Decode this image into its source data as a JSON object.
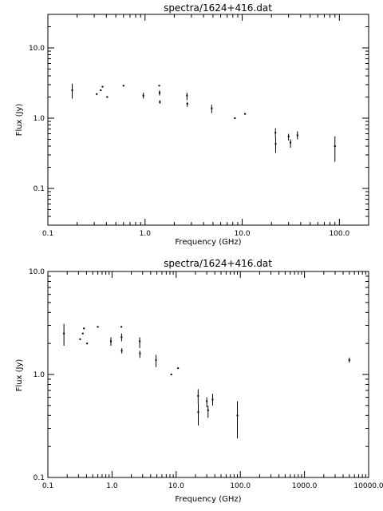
{
  "chart_data": [
    {
      "type": "scatter",
      "title": "spectra/1624+416.dat",
      "xlabel": "Frequency (GHz)",
      "ylabel": "Flux (Jy)",
      "xscale": "log",
      "yscale": "log",
      "xlim": [
        0.1,
        200.0
      ],
      "ylim": [
        0.03,
        30.0
      ],
      "x_ticks": [
        "0.1",
        "1.0",
        "10.0",
        "100.0"
      ],
      "y_ticks": [
        "0.1",
        "1.0",
        "10.0"
      ],
      "grid": false,
      "points": [
        {
          "x": 0.178,
          "y": 2.5,
          "ylo": 1.9,
          "yhi": 3.1
        },
        {
          "x": 0.318,
          "y": 2.2
        },
        {
          "x": 0.35,
          "y": 2.5
        },
        {
          "x": 0.365,
          "y": 2.8
        },
        {
          "x": 0.408,
          "y": 2.0
        },
        {
          "x": 0.6,
          "y": 2.9
        },
        {
          "x": 0.96,
          "y": 2.1,
          "ylo": 1.9,
          "yhi": 2.3
        },
        {
          "x": 1.4,
          "y": 2.9
        },
        {
          "x": 1.41,
          "y": 2.3,
          "ylo": 2.1,
          "yhi": 2.5
        },
        {
          "x": 1.42,
          "y": 1.7,
          "ylo": 1.6,
          "yhi": 1.8
        },
        {
          "x": 2.7,
          "y": 2.1,
          "ylo": 1.8,
          "yhi": 2.3
        },
        {
          "x": 2.72,
          "y": 1.6,
          "ylo": 1.45,
          "yhi": 1.7
        },
        {
          "x": 4.85,
          "y": 1.38,
          "ylo": 1.18,
          "yhi": 1.55
        },
        {
          "x": 8.4,
          "y": 1.0
        },
        {
          "x": 10.7,
          "y": 1.15
        },
        {
          "x": 22.0,
          "y": 0.62,
          "ylo": 0.52,
          "yhi": 0.72
        },
        {
          "x": 22.1,
          "y": 0.43,
          "ylo": 0.32,
          "yhi": 0.52
        },
        {
          "x": 30.0,
          "y": 0.55,
          "ylo": 0.48,
          "yhi": 0.6
        },
        {
          "x": 31.4,
          "y": 0.45,
          "ylo": 0.38,
          "yhi": 0.5
        },
        {
          "x": 37.0,
          "y": 0.57,
          "ylo": 0.5,
          "yhi": 0.65
        },
        {
          "x": 90.0,
          "y": 0.4,
          "ylo": 0.24,
          "yhi": 0.55
        }
      ]
    },
    {
      "type": "scatter",
      "title": "spectra/1624+416.dat",
      "xlabel": "Frequency (GHz)",
      "ylabel": "Flux (Jy)",
      "xscale": "log",
      "yscale": "log",
      "xlim": [
        0.1,
        10000.0
      ],
      "ylim": [
        0.1,
        10.0
      ],
      "x_ticks": [
        "0.1",
        "1.0",
        "10.0",
        "100.0",
        "1000.0",
        "10000.0"
      ],
      "y_ticks": [
        "0.1",
        "1.0",
        "10.0"
      ],
      "grid": false,
      "points": [
        {
          "x": 0.178,
          "y": 2.5,
          "ylo": 1.9,
          "yhi": 3.1
        },
        {
          "x": 0.318,
          "y": 2.2
        },
        {
          "x": 0.35,
          "y": 2.5
        },
        {
          "x": 0.365,
          "y": 2.8
        },
        {
          "x": 0.408,
          "y": 2.0
        },
        {
          "x": 0.6,
          "y": 2.9
        },
        {
          "x": 0.96,
          "y": 2.1,
          "ylo": 1.9,
          "yhi": 2.3
        },
        {
          "x": 1.4,
          "y": 2.9
        },
        {
          "x": 1.41,
          "y": 2.3,
          "ylo": 2.1,
          "yhi": 2.5
        },
        {
          "x": 1.42,
          "y": 1.7,
          "ylo": 1.6,
          "yhi": 1.8
        },
        {
          "x": 2.7,
          "y": 2.1,
          "ylo": 1.8,
          "yhi": 2.3
        },
        {
          "x": 2.72,
          "y": 1.6,
          "ylo": 1.45,
          "yhi": 1.7
        },
        {
          "x": 4.85,
          "y": 1.38,
          "ylo": 1.18,
          "yhi": 1.55
        },
        {
          "x": 8.4,
          "y": 1.0
        },
        {
          "x": 10.7,
          "y": 1.15
        },
        {
          "x": 22.0,
          "y": 0.62,
          "ylo": 0.52,
          "yhi": 0.72
        },
        {
          "x": 22.1,
          "y": 0.43,
          "ylo": 0.32,
          "yhi": 0.52
        },
        {
          "x": 30.0,
          "y": 0.55,
          "ylo": 0.48,
          "yhi": 0.6
        },
        {
          "x": 31.4,
          "y": 0.45,
          "ylo": 0.38,
          "yhi": 0.5
        },
        {
          "x": 37.0,
          "y": 0.57,
          "ylo": 0.5,
          "yhi": 0.65
        },
        {
          "x": 90.0,
          "y": 0.4,
          "ylo": 0.24,
          "yhi": 0.55
        },
        {
          "x": 5000.0,
          "y": 1.38,
          "ylo": 1.3,
          "yhi": 1.46
        }
      ]
    }
  ]
}
